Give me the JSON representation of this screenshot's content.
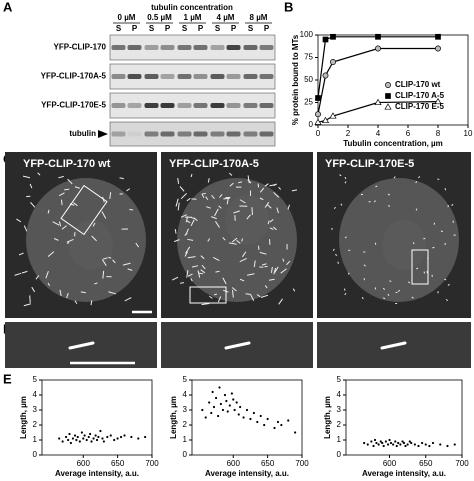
{
  "panel_labels": [
    "A",
    "B",
    "C",
    "D",
    "E"
  ],
  "gel": {
    "title": "tubulin concentration",
    "concentrations": [
      "0 µM",
      "0.5 µM",
      "1 µM",
      "4 µM",
      "8 µM"
    ],
    "lanes": [
      "S",
      "P"
    ],
    "rows": [
      "YFP-CLIP-170",
      "YFP-CLIP-170A-5",
      "YFP-CLIP-170E-5",
      "tubulin"
    ]
  },
  "images": {
    "labels": [
      "YFP-CLIP-170 wt",
      "YFP-CLIP-170A-5",
      "YFP-CLIP-170E-5"
    ]
  },
  "chart_data": [
    {
      "type": "line",
      "x_label": "Tubulin concentration, µm",
      "y_label": "% protein bound to MTs",
      "x": [
        0,
        0.5,
        1,
        4,
        8
      ],
      "xlim": [
        0,
        10
      ],
      "xticks": [
        0,
        2,
        4,
        6,
        8,
        10
      ],
      "ylim": [
        0,
        100
      ],
      "yticks": [
        0,
        25,
        50,
        75,
        100
      ],
      "legend": "right",
      "series": [
        {
          "name": "CLIP-170 wt",
          "marker": "circle",
          "color": "#bdbdbd",
          "values": [
            12,
            55,
            70,
            85,
            85
          ]
        },
        {
          "name": "CLIP-170 A-5",
          "marker": "square",
          "color": "#000000",
          "values": [
            30,
            95,
            98,
            98,
            98
          ]
        },
        {
          "name": "CLIP-170 E-5",
          "marker": "triangle",
          "color": "#ffffff",
          "values": [
            3,
            5,
            10,
            25,
            26
          ]
        }
      ]
    },
    {
      "type": "scatter",
      "x_label": "Average intensity, a.u.",
      "y_label": "Length, µm",
      "xlim": [
        540,
        700
      ],
      "xticks": [
        600,
        650,
        700
      ],
      "ylim": [
        0,
        5
      ],
      "yticks": [
        0,
        1,
        2,
        3,
        4,
        5
      ],
      "color": "#000000",
      "x": [
        565,
        570,
        575,
        578,
        580,
        582,
        585,
        588,
        590,
        592,
        595,
        598,
        600,
        602,
        605,
        608,
        610,
        612,
        615,
        618,
        620,
        622,
        625,
        628,
        630,
        635,
        640,
        645,
        650,
        655,
        660,
        670,
        680,
        690
      ],
      "values": [
        1.1,
        0.9,
        1.2,
        1.0,
        1.4,
        0.8,
        1.1,
        1.3,
        1.0,
        1.2,
        0.9,
        1.5,
        1.1,
        1.3,
        1.0,
        1.2,
        1.4,
        0.9,
        1.1,
        1.3,
        1.0,
        1.2,
        1.6,
        1.1,
        0.9,
        1.2,
        1.3,
        1.0,
        1.1,
        1.2,
        1.3,
        1.2,
        1.1,
        1.2
      ]
    },
    {
      "type": "scatter",
      "x_label": "Average intensity, a.u.",
      "y_label": "Length, µm",
      "xlim": [
        540,
        700
      ],
      "xticks": [
        600,
        650,
        700
      ],
      "ylim": [
        0,
        5
      ],
      "yticks": [
        0,
        1,
        2,
        3,
        4,
        5
      ],
      "color": "#000000",
      "x": [
        555,
        560,
        565,
        568,
        570,
        572,
        575,
        578,
        580,
        582,
        585,
        588,
        590,
        592,
        595,
        598,
        600,
        602,
        605,
        608,
        610,
        615,
        620,
        625,
        630,
        635,
        640,
        645,
        650,
        660,
        665,
        670,
        680,
        690
      ],
      "values": [
        3.0,
        2.5,
        3.5,
        2.8,
        4.2,
        3.2,
        3.8,
        2.6,
        4.5,
        3.4,
        3.0,
        4.0,
        3.6,
        2.9,
        3.3,
        4.1,
        3.7,
        3.0,
        3.5,
        2.7,
        3.2,
        2.5,
        3.0,
        2.4,
        2.8,
        2.2,
        2.6,
        2.0,
        2.4,
        1.8,
        2.2,
        2.0,
        2.3,
        1.5
      ]
    },
    {
      "type": "scatter",
      "x_label": "Average intensity, a.u.",
      "y_label": "Length, µm",
      "xlim": [
        540,
        700
      ],
      "xticks": [
        600,
        650,
        700
      ],
      "ylim": [
        0,
        5
      ],
      "yticks": [
        0,
        1,
        2,
        3,
        4,
        5
      ],
      "color": "#000000",
      "x": [
        565,
        570,
        575,
        578,
        580,
        582,
        585,
        588,
        590,
        592,
        595,
        598,
        600,
        602,
        605,
        608,
        610,
        612,
        615,
        618,
        620,
        622,
        625,
        628,
        630,
        635,
        640,
        645,
        650,
        655,
        660,
        670,
        680,
        690
      ],
      "values": [
        0.8,
        0.7,
        0.9,
        0.6,
        1.0,
        0.8,
        0.7,
        0.9,
        0.8,
        0.6,
        0.9,
        0.7,
        1.0,
        0.8,
        0.7,
        0.9,
        0.6,
        0.8,
        0.7,
        0.9,
        0.8,
        0.6,
        0.7,
        0.9,
        0.8,
        0.7,
        0.6,
        0.8,
        0.7,
        0.6,
        0.8,
        0.7,
        0.6,
        0.7
      ]
    }
  ]
}
